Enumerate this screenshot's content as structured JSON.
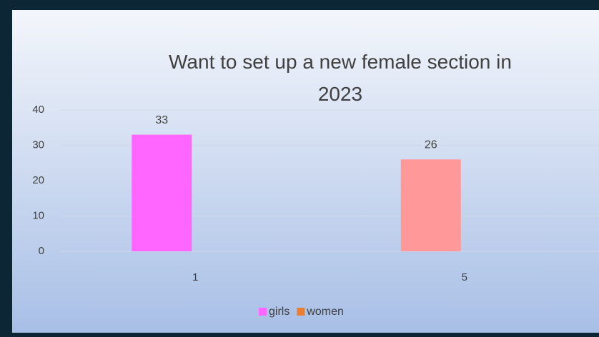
{
  "chart_data": {
    "type": "bar",
    "title": "Want to set up a new female section in 2023",
    "categories": [
      "1",
      "5"
    ],
    "series": [
      {
        "name": "girls",
        "color": "#ff66ff",
        "point_colors": [
          "#ff66ff",
          "#ff9999"
        ],
        "values": [
          33,
          26
        ]
      },
      {
        "name": "women",
        "color": "#ed7d31",
        "values": [
          null,
          null
        ]
      }
    ],
    "ylim": [
      0,
      40
    ],
    "yticks": [
      0,
      10,
      20,
      30,
      40
    ],
    "grid": true,
    "legend": "bottom"
  }
}
